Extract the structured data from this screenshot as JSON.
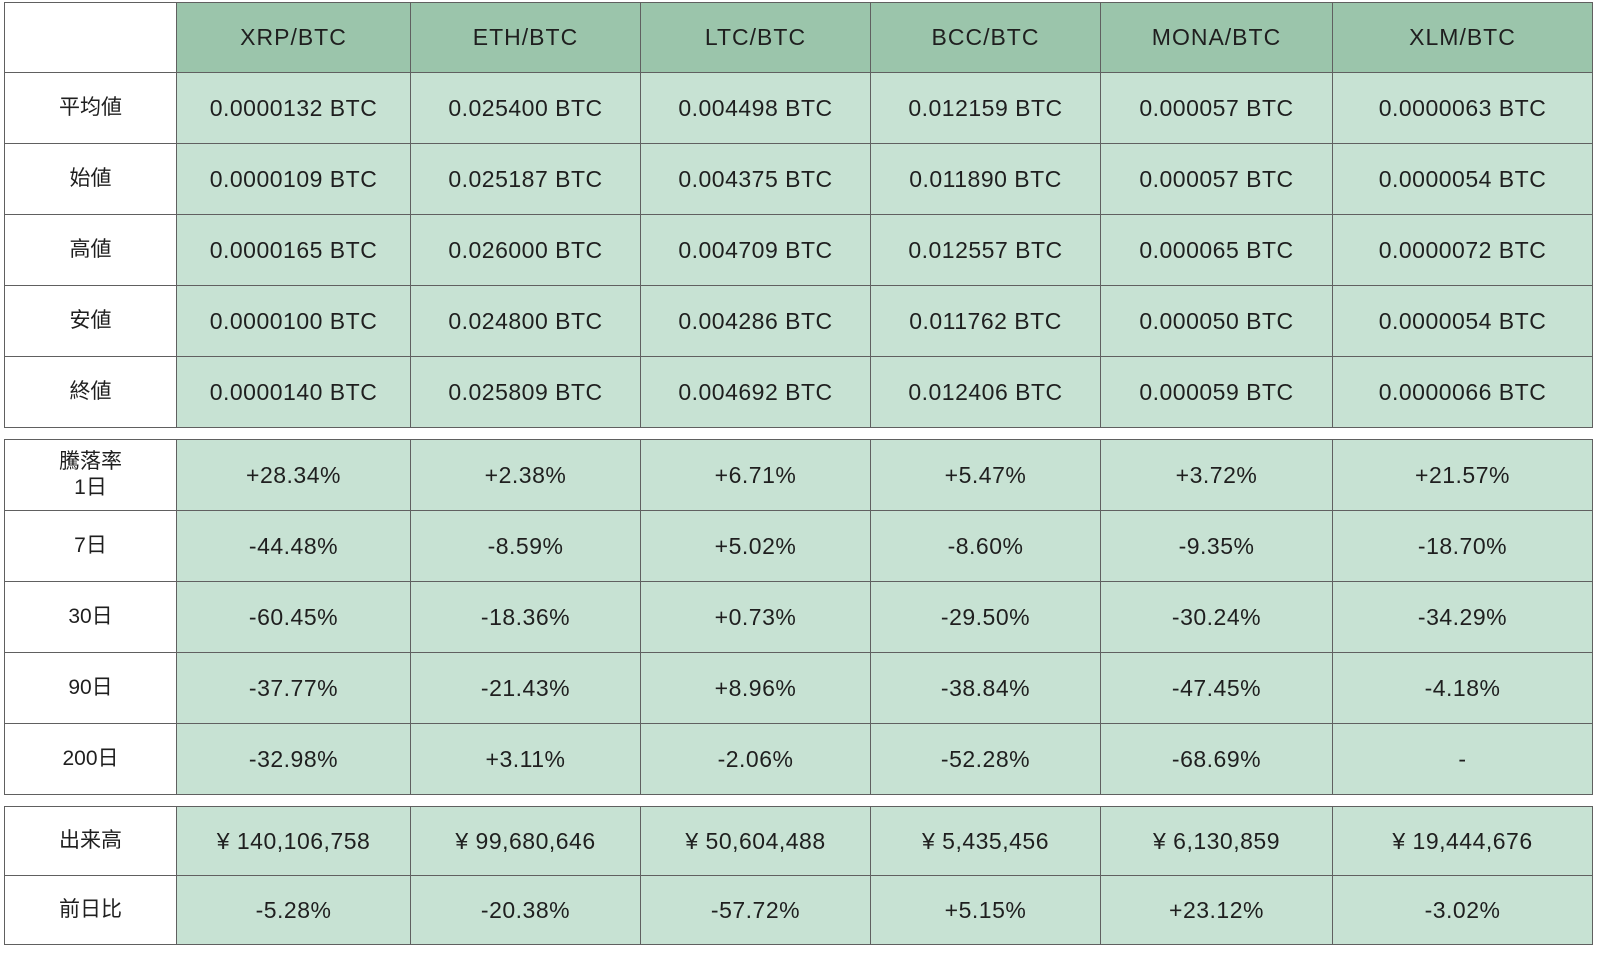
{
  "chart_data": {
    "type": "table",
    "title": "",
    "columns": [
      "XRP/BTC",
      "ETH/BTC",
      "LTC/BTC",
      "BCC/BTC",
      "MONA/BTC",
      "XLM/BTC"
    ],
    "sections": [
      {
        "name": "prices",
        "show_column_header": true,
        "rows": [
          {
            "key": "average",
            "label": "平均値",
            "values": [
              "0.0000132 BTC",
              "0.025400 BTC",
              "0.004498 BTC",
              "0.012159 BTC",
              "0.000057 BTC",
              "0.0000063 BTC"
            ]
          },
          {
            "key": "open",
            "label": "始値",
            "values": [
              "0.0000109 BTC",
              "0.025187 BTC",
              "0.004375 BTC",
              "0.011890 BTC",
              "0.000057 BTC",
              "0.0000054 BTC"
            ]
          },
          {
            "key": "high",
            "label": "高値",
            "values": [
              "0.0000165 BTC",
              "0.026000 BTC",
              "0.004709 BTC",
              "0.012557 BTC",
              "0.000065 BTC",
              "0.0000072 BTC"
            ]
          },
          {
            "key": "low",
            "label": "安値",
            "values": [
              "0.0000100 BTC",
              "0.024800 BTC",
              "0.004286 BTC",
              "0.011762 BTC",
              "0.000050 BTC",
              "0.0000054 BTC"
            ]
          },
          {
            "key": "close",
            "label": "終値",
            "values": [
              "0.0000140 BTC",
              "0.025809 BTC",
              "0.004692 BTC",
              "0.012406 BTC",
              "0.000059 BTC",
              "0.0000066 BTC"
            ]
          }
        ]
      },
      {
        "name": "change-rates",
        "show_column_header": false,
        "rows": [
          {
            "key": "change-1d",
            "label": "騰落率\n1日",
            "values": [
              "+28.34%",
              "+2.38%",
              "+6.71%",
              "+5.47%",
              "+3.72%",
              "+21.57%"
            ]
          },
          {
            "key": "change-7d",
            "label": "7日",
            "values": [
              "-44.48%",
              "-8.59%",
              "+5.02%",
              "-8.60%",
              "-9.35%",
              "-18.70%"
            ]
          },
          {
            "key": "change-30d",
            "label": "30日",
            "values": [
              "-60.45%",
              "-18.36%",
              "+0.73%",
              "-29.50%",
              "-30.24%",
              "-34.29%"
            ]
          },
          {
            "key": "change-90d",
            "label": "90日",
            "values": [
              "-37.77%",
              "-21.43%",
              "+8.96%",
              "-38.84%",
              "-47.45%",
              "-4.18%"
            ]
          },
          {
            "key": "change-200d",
            "label": "200日",
            "values": [
              "-32.98%",
              "+3.11%",
              "-2.06%",
              "-52.28%",
              "-68.69%",
              "-"
            ]
          }
        ]
      },
      {
        "name": "volume",
        "show_column_header": false,
        "rows": [
          {
            "key": "volume",
            "label": "出来高",
            "values": [
              "¥ 140,106,758",
              "¥ 99,680,646",
              "¥ 50,604,488",
              "¥ 5,435,456",
              "¥ 6,130,859",
              "¥ 19,444,676"
            ]
          },
          {
            "key": "day-over-day",
            "label": "前日比",
            "values": [
              "-5.28%",
              "-20.38%",
              "-57.72%",
              "+5.15%",
              "+23.12%",
              "-3.02%"
            ]
          }
        ]
      }
    ],
    "colors": {
      "header_bg": "#9bc5ab",
      "cell_bg": "#c7e2d3",
      "border": "#606060",
      "text": "#1f1f1f",
      "background": "#ffffff"
    },
    "layout_hints": {
      "grid": true,
      "row_label_column_background": "#ffffff",
      "section_gap_background": "#ffffff"
    }
  }
}
